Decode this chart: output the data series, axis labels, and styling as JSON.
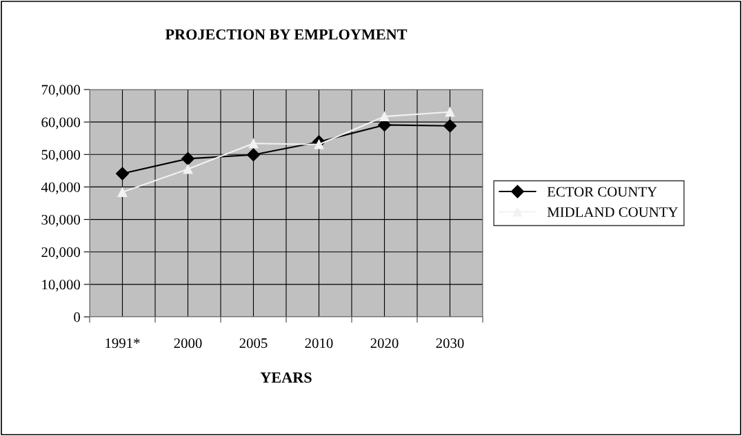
{
  "chart_data": {
    "type": "line",
    "title": "PROJECTION BY EMPLOYMENT",
    "xlabel": "YEARS",
    "categories": [
      "1991*",
      "2000",
      "2005",
      "2010",
      "2020",
      "2030"
    ],
    "series": [
      {
        "name": "ECTOR COUNTY",
        "color": "#000000",
        "marker": "diamond",
        "values": [
          44100,
          48700,
          49900,
          53900,
          59100,
          58800
        ]
      },
      {
        "name": "MIDLAND COUNTY",
        "color": "#f2f2f2",
        "marker": "triangle",
        "values": [
          38400,
          45500,
          53400,
          53100,
          61700,
          63100
        ]
      }
    ],
    "ylim": [
      0,
      70000
    ],
    "yticks": [
      {
        "value": 0,
        "label": "0"
      },
      {
        "value": 10000,
        "label": "10,000"
      },
      {
        "value": 20000,
        "label": "20,000"
      },
      {
        "value": 30000,
        "label": "30,000"
      },
      {
        "value": 40000,
        "label": "40,000"
      },
      {
        "value": 50000,
        "label": "50,000"
      },
      {
        "value": 60000,
        "label": "60,000"
      },
      {
        "value": 70000,
        "label": "70,000"
      }
    ],
    "grid": true,
    "legend": "right",
    "line_style": "solid"
  }
}
